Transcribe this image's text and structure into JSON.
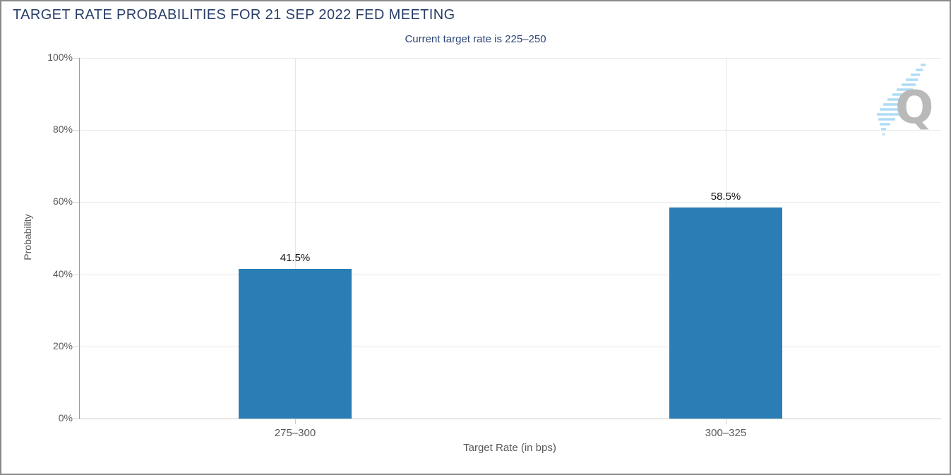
{
  "header": {
    "title": "TARGET RATE PROBABILITIES FOR 21 SEP 2022 FED MEETING",
    "subtitle": "Current target rate is 225–250"
  },
  "chart_data": {
    "type": "bar",
    "title": "TARGET RATE PROBABILITIES FOR 21 SEP 2022 FED MEETING",
    "subtitle": "Current target rate is 225–250",
    "categories": [
      "275–300",
      "300–325"
    ],
    "values": [
      41.5,
      58.5
    ],
    "value_labels": [
      "41.5%",
      "58.5%"
    ],
    "xlabel": "Target Rate (in bps)",
    "ylabel": "Probability",
    "ylim": [
      0,
      100
    ],
    "ytick_step": 20,
    "ytick_labels": [
      "0%",
      "20%",
      "40%",
      "60%",
      "80%",
      "100%"
    ],
    "grid": true,
    "legend": "none",
    "bar_color": "#2b7eb5"
  },
  "colors": {
    "bar": "#2b7eb5",
    "title_text": "#2a3f6a",
    "axis_text": "#595959",
    "gridline": "#e7e7e7",
    "frame_border": "#8a8a8a",
    "watermark_gray": "#b9b9b9",
    "watermark_blue": "#aedcf5"
  },
  "watermark": {
    "letter": "Q"
  }
}
